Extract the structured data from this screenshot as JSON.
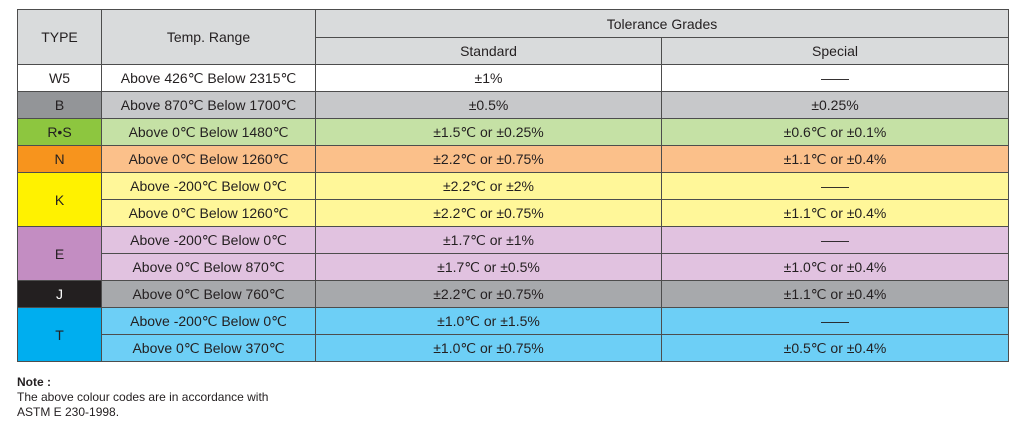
{
  "header": {
    "type": "TYPE",
    "temp_range": "Temp. Range",
    "tolerance": "Tolerance Grades",
    "standard": "Standard",
    "special": "Special"
  },
  "rows": [
    {
      "type": "W5",
      "span": 1,
      "type_color": "#ffffff",
      "type_text_color": "#231f20",
      "row_color": "#ffffff",
      "lines": [
        {
          "range": "Above 426℃ Below 2315℃",
          "standard": "±1%",
          "special": "——"
        }
      ]
    },
    {
      "type": "B",
      "span": 1,
      "type_color": "#939598",
      "type_text_color": "#231f20",
      "row_color": "#c7c8ca",
      "lines": [
        {
          "range": "Above 870℃ Below 1700℃",
          "standard": "±0.5%",
          "special": "±0.25%"
        }
      ]
    },
    {
      "type": "R•S",
      "span": 1,
      "type_color": "#8dc63f",
      "type_text_color": "#231f20",
      "row_color": "#c5e1a5",
      "lines": [
        {
          "range": "Above 0℃ Below 1480℃",
          "standard": "±1.5℃ or ±0.25%",
          "special": "±0.6℃ or ±0.1%"
        }
      ]
    },
    {
      "type": "N",
      "span": 1,
      "type_color": "#f7941d",
      "type_text_color": "#231f20",
      "row_color": "#fbc08a",
      "lines": [
        {
          "range": "Above 0℃ Below 1260℃",
          "standard": "±2.2℃ or ±0.75%",
          "special": "±1.1℃ or ±0.4%"
        }
      ]
    },
    {
      "type": "K",
      "span": 2,
      "type_color": "#fff200",
      "type_text_color": "#231f20",
      "row_color": "#fff799",
      "lines": [
        {
          "range": "Above -200℃ Below 0℃",
          "standard": "±2.2℃ or ±2%",
          "special": "——"
        },
        {
          "range": "Above 0℃ Below 1260℃",
          "standard": "±2.2℃ or ±0.75%",
          "special": "±1.1℃ or ±0.4%"
        }
      ]
    },
    {
      "type": "E",
      "span": 2,
      "type_color": "#c38dc2",
      "type_text_color": "#231f20",
      "row_color": "#e1c2e0",
      "lines": [
        {
          "range": "Above -200℃ Below 0℃",
          "standard": "±1.7℃ or ±1%",
          "special": "——"
        },
        {
          "range": "Above 0℃ Below 870℃",
          "standard": "±1.7℃ or ±0.5%",
          "special": "±1.0℃ or ±0.4%"
        }
      ]
    },
    {
      "type": "J",
      "span": 1,
      "type_color": "#231f20",
      "type_text_color": "#ffffff",
      "row_color": "#a7a9ac",
      "lines": [
        {
          "range": "Above 0℃ Below 760℃",
          "standard": "±2.2℃ or ±0.75%",
          "special": "±1.1℃ or ±0.4%"
        }
      ]
    },
    {
      "type": "T",
      "span": 2,
      "type_color": "#00aeef",
      "type_text_color": "#231f20",
      "row_color": "#6dcff6",
      "lines": [
        {
          "range": "Above -200℃ Below 0℃",
          "standard": "±1.0℃ or ±1.5%",
          "special": "——"
        },
        {
          "range": "Above 0℃ Below 370℃",
          "standard": "±1.0℃ or ±0.75%",
          "special": "±0.5℃ or ±0.4%"
        }
      ]
    }
  ],
  "note": {
    "title": "Note :",
    "line1": "The above colour codes are in accordance with",
    "line2": "ASTM E 230-1998."
  }
}
